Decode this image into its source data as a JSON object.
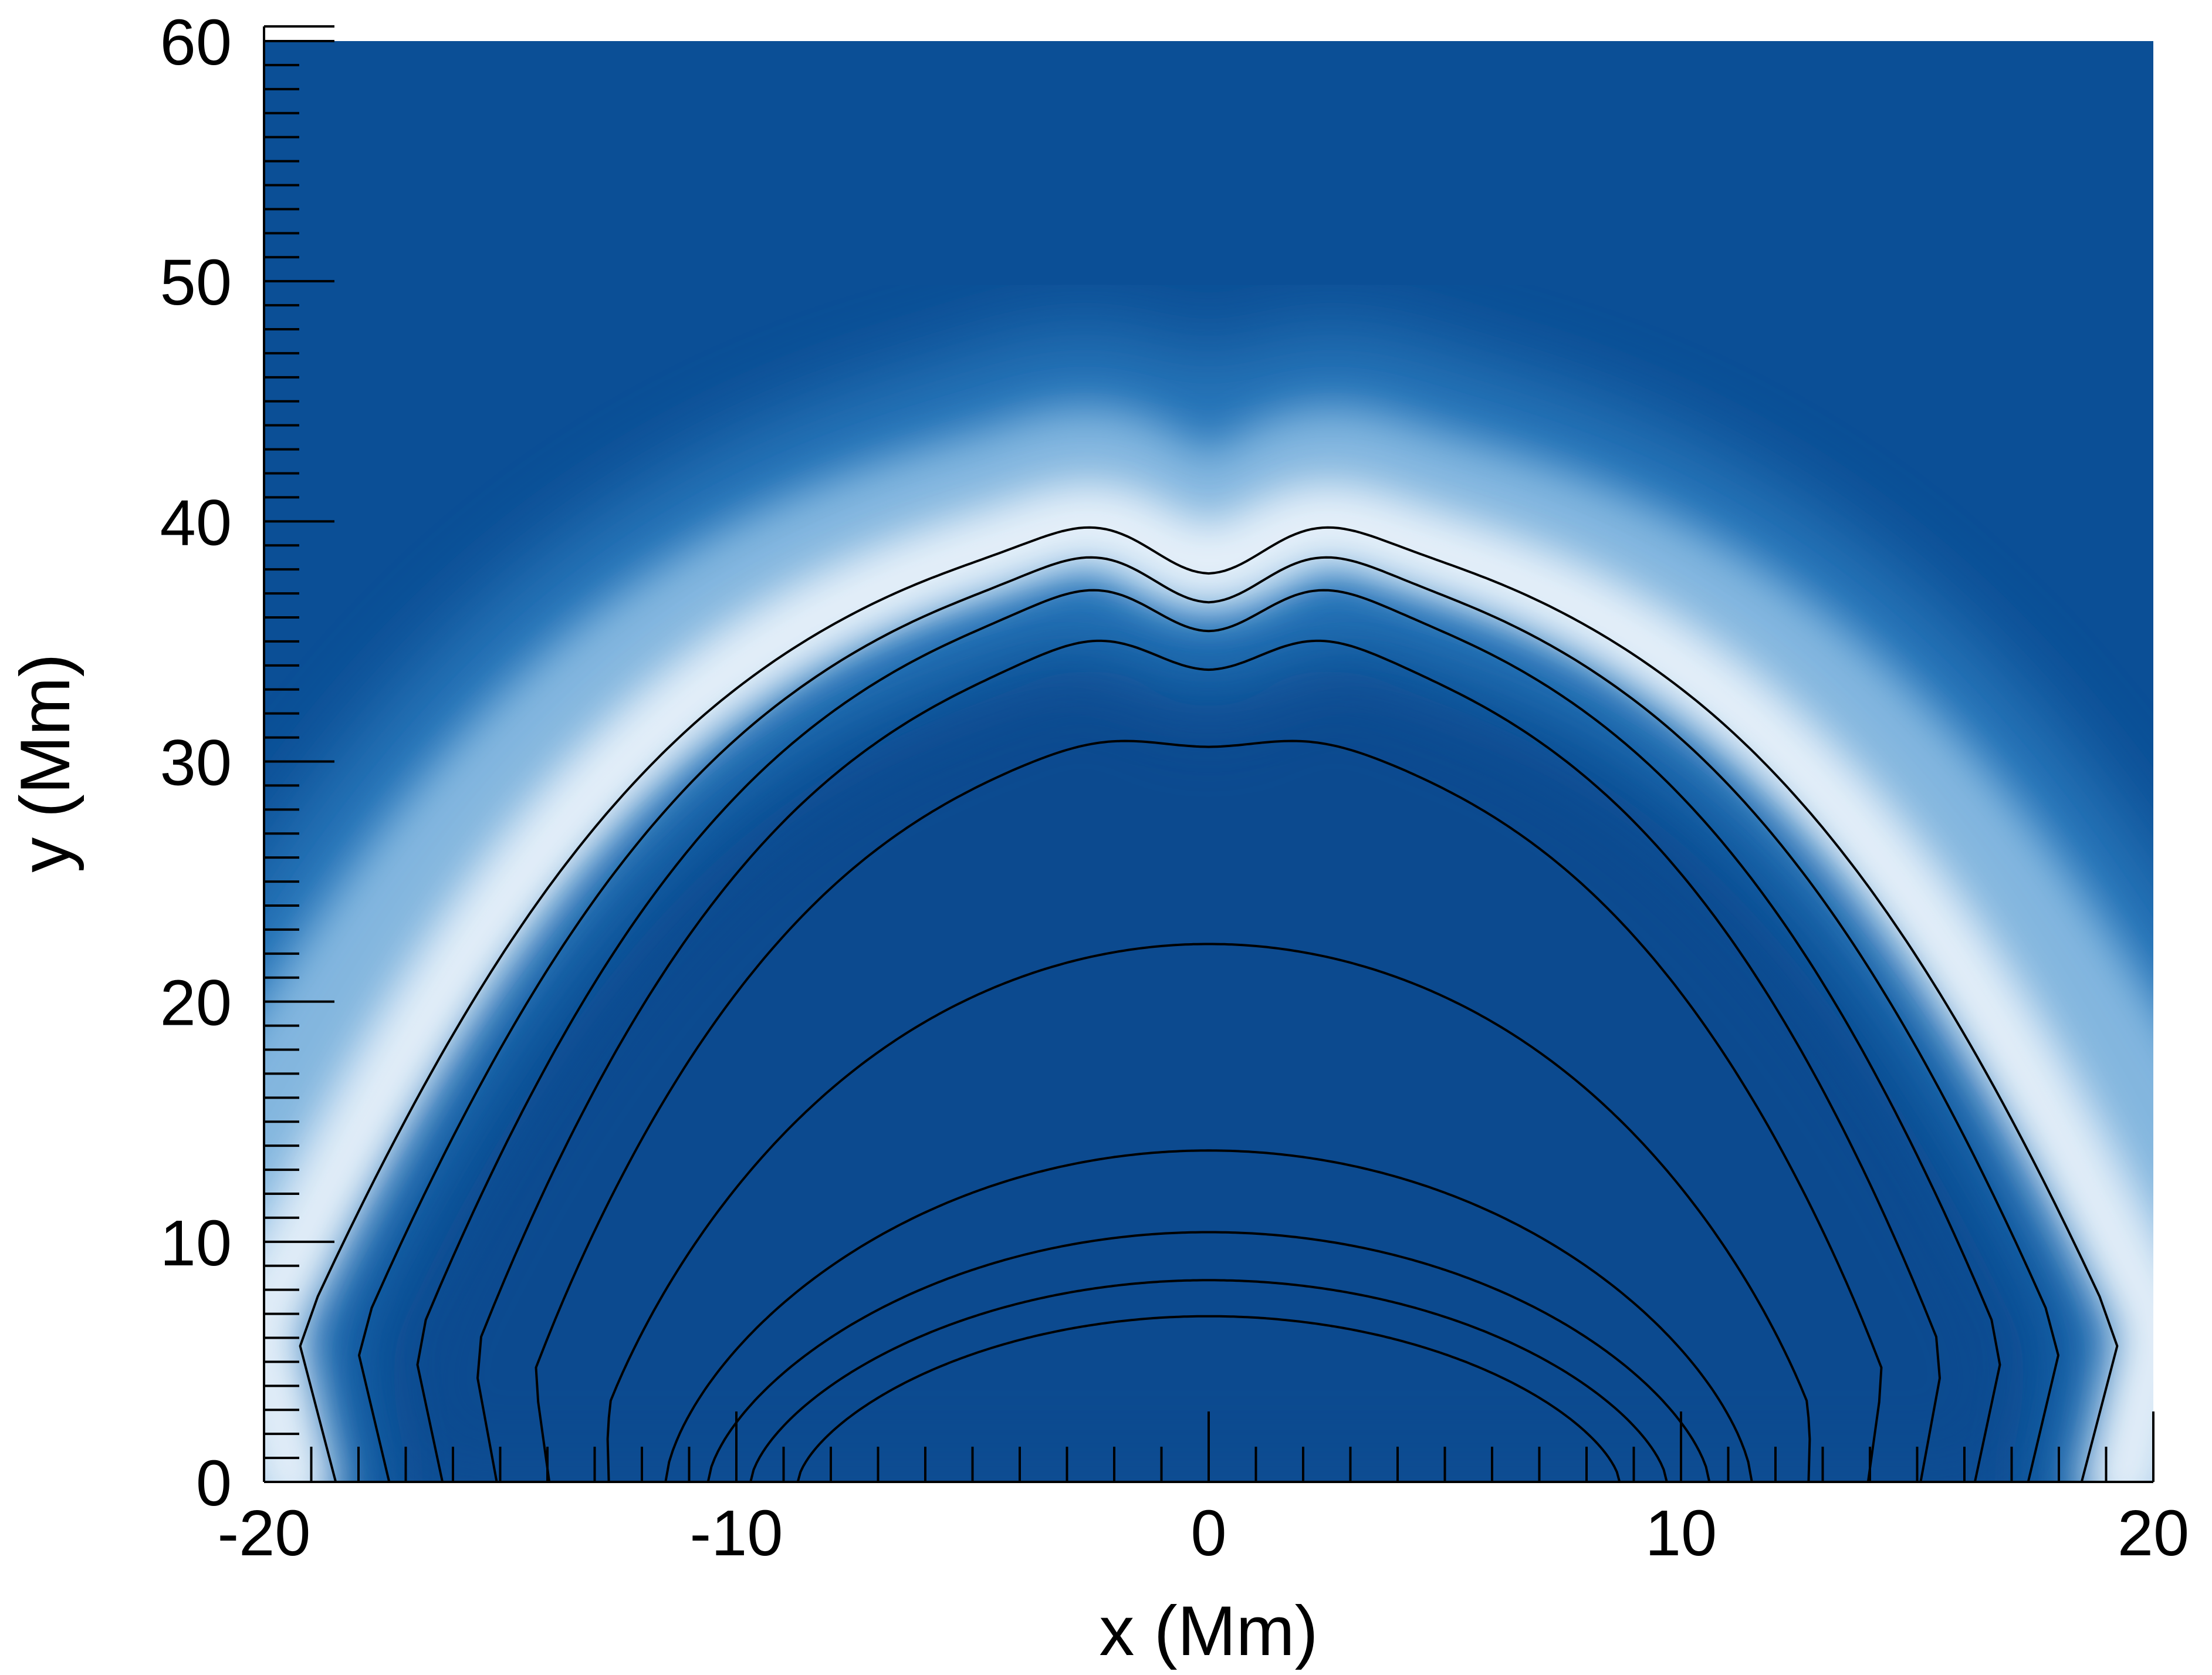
{
  "chart_data": {
    "type": "heatmap",
    "title": "",
    "xlabel": "x (Mm)",
    "ylabel": "y (Mm)",
    "xlim": [
      -20,
      20
    ],
    "ylim": [
      0,
      60
    ],
    "x_ticks": [
      -20,
      -10,
      0,
      10,
      20
    ],
    "y_ticks": [
      0,
      10,
      20,
      30,
      40,
      50,
      60
    ],
    "x_tick_labels": [
      "-20",
      "-10",
      "0",
      "10",
      "20"
    ],
    "y_tick_labels": [
      "0",
      "10",
      "20",
      "30",
      "40",
      "50",
      "60"
    ],
    "colors": {
      "background": "#0b4f96",
      "background_dark": "#0a468a",
      "mid": "#2f7fc1",
      "light": "#8dbde3",
      "highlight": "#eaf3fb",
      "field_lines": "#000000"
    },
    "bright_arc_apex_y": 40,
    "bright_arc_footpoint_x": [
      -19.5,
      19.5
    ],
    "field_lines": [
      {
        "footpoints_x": [
          -8.7,
          8.7
        ],
        "apex_y": 6.9
      },
      {
        "footpoints_x": [
          -9.7,
          9.7
        ],
        "apex_y": 8.4
      },
      {
        "footpoints_x": [
          -10.6,
          10.6
        ],
        "apex_y": 10.4
      },
      {
        "footpoints_x": [
          -11.5,
          11.5
        ],
        "apex_y": 13.8
      },
      {
        "footpoints_x": [
          -12.4,
          12.4
        ],
        "apex_y": 22.4
      },
      {
        "footpoints_x": [
          -13.3,
          13.3
        ],
        "apex_y": 31.2,
        "dip_y": 30.6
      },
      {
        "footpoints_x": [
          -14.2,
          14.2
        ],
        "apex_y": 35.3,
        "dip_y": 33.8
      },
      {
        "footpoints_x": [
          -15.2,
          15.2
        ],
        "apex_y": 37.3,
        "dip_y": 35.4
      },
      {
        "footpoints_x": [
          -16.2,
          16.2
        ],
        "apex_y": 38.6,
        "dip_y": 36.6
      },
      {
        "footpoints_x": [
          -17.2,
          17.2
        ],
        "apex_y": 39.8,
        "dip_y": 37.8
      }
    ]
  }
}
